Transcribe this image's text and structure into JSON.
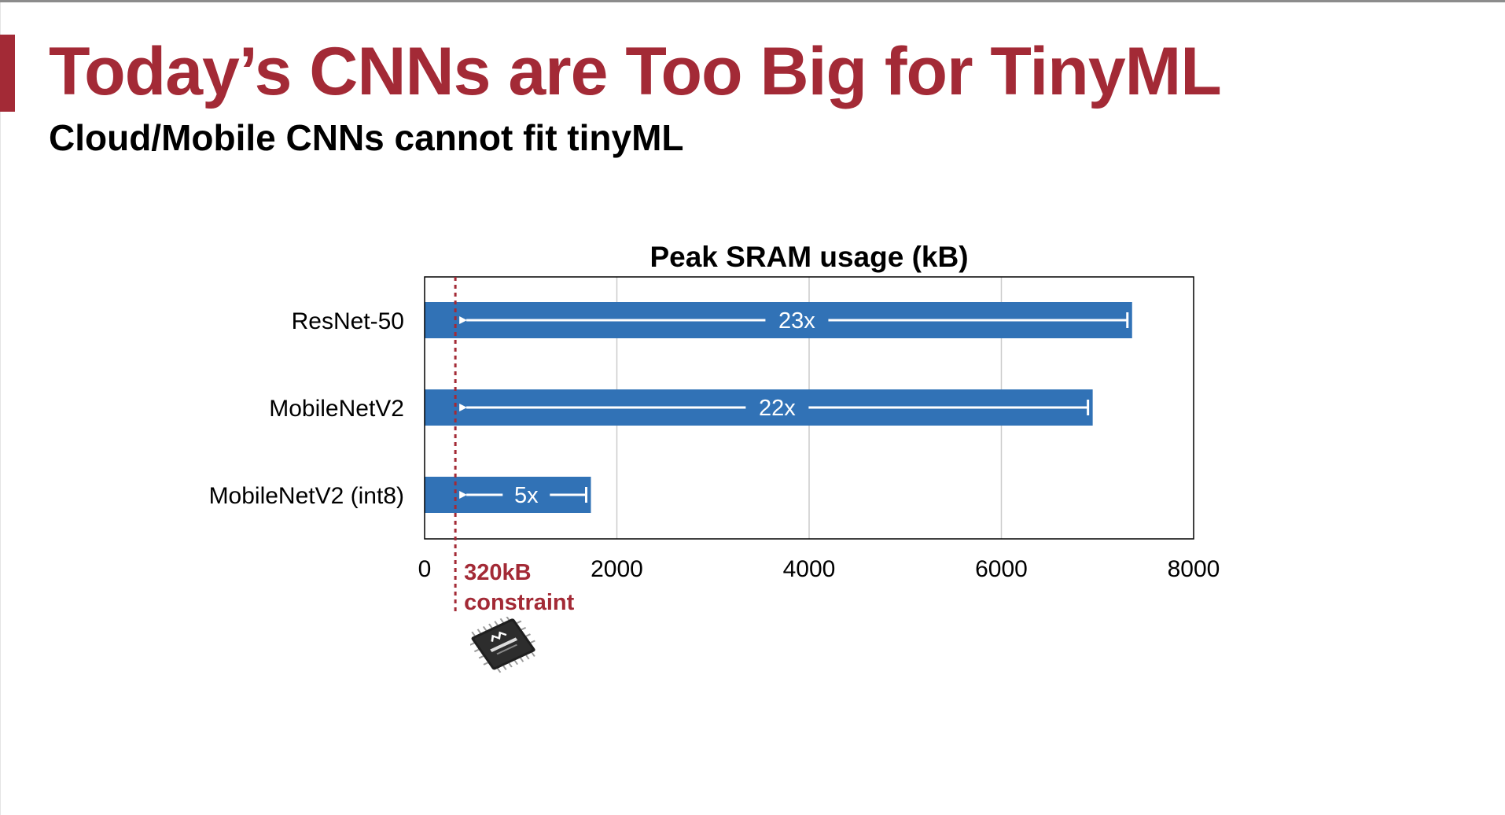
{
  "slide": {
    "title": "Today’s CNNs are Too Big for TinyML",
    "subtitle": "Cloud/Mobile CNNs cannot fit tinyML",
    "accent_color": "#a32a36"
  },
  "chart_data": {
    "type": "bar",
    "orientation": "horizontal",
    "title": "Peak SRAM usage (kB)",
    "xlabel": "",
    "ylabel": "",
    "categories": [
      "ResNet-50",
      "MobileNetV2",
      "MobileNetV2 (int8)"
    ],
    "values": [
      7360,
      6950,
      1730
    ],
    "xlim": [
      0,
      8000
    ],
    "xticks": [
      0,
      2000,
      4000,
      6000,
      8000
    ],
    "grid": true,
    "bar_color": "#3172b6",
    "constraint": {
      "value": 320,
      "label_line1": "320kB",
      "label_line2": "constraint",
      "color": "#a32a36"
    },
    "annotations": [
      {
        "category": "ResNet-50",
        "text": "23x"
      },
      {
        "category": "MobileNetV2",
        "text": "22x"
      },
      {
        "category": "MobileNetV2 (int8)",
        "text": "5x"
      }
    ]
  },
  "chip_icon": "microcontroller-chip-icon"
}
